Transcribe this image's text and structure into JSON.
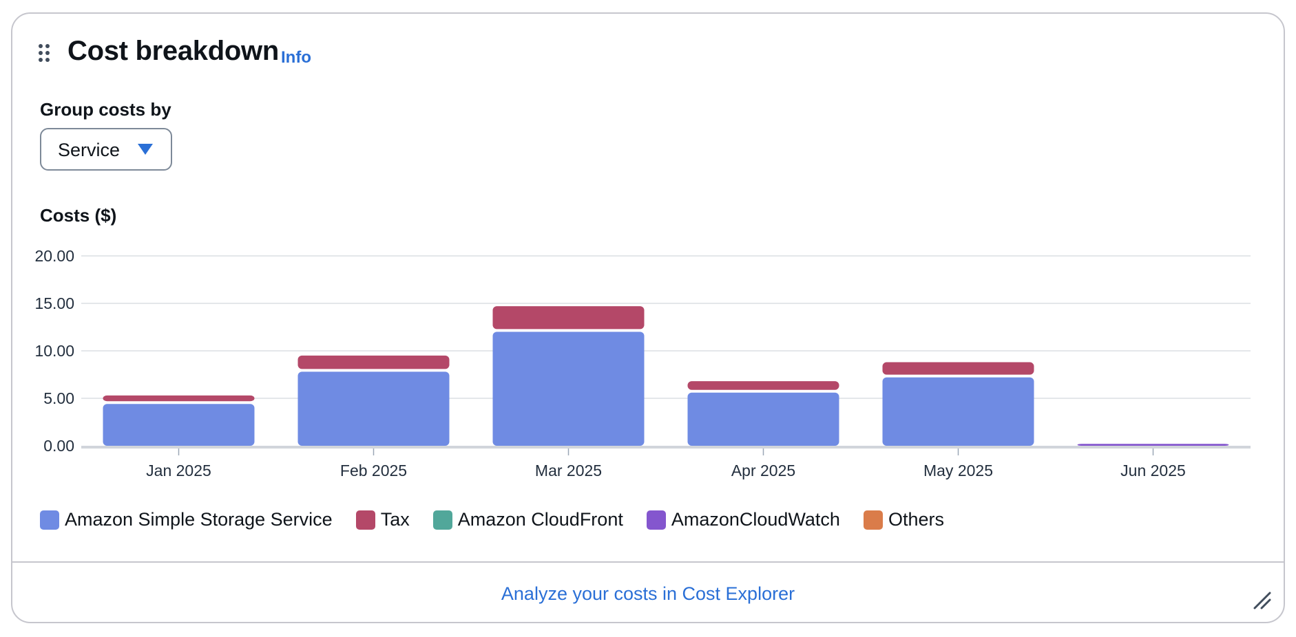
{
  "header": {
    "title": "Cost breakdown",
    "info_label": "Info"
  },
  "group_by": {
    "label": "Group costs by",
    "selected": "Service"
  },
  "chart_data": {
    "type": "bar",
    "stacked": true,
    "ylabel": "Costs ($)",
    "ylim": [
      0,
      20
    ],
    "yticks": [
      "0.00",
      "5.00",
      "10.00",
      "15.00",
      "20.00"
    ],
    "categories": [
      "Jan 2025",
      "Feb 2025",
      "Mar 2025",
      "Apr 2025",
      "May 2025",
      "Jun 2025"
    ],
    "series": [
      {
        "name": "Amazon Simple Storage Service",
        "color": "#6f8be3",
        "values": [
          4.4,
          7.8,
          12.0,
          5.6,
          7.2,
          0
        ]
      },
      {
        "name": "Tax",
        "color": "#b44868",
        "values": [
          0.9,
          1.7,
          2.7,
          1.2,
          1.6,
          0
        ]
      },
      {
        "name": "Amazon CloudFront",
        "color": "#51a79a",
        "values": [
          0,
          0,
          0,
          0,
          0,
          0
        ]
      },
      {
        "name": "AmazonCloudWatch",
        "color": "#8456ce",
        "values": [
          0,
          0,
          0,
          0,
          0,
          0.2
        ]
      },
      {
        "name": "Others",
        "color": "#da7c4a",
        "values": [
          0,
          0,
          0,
          0,
          0,
          0
        ]
      }
    ],
    "grid": true,
    "legend_position": "bottom-left"
  },
  "footer": {
    "link_label": "Analyze your costs in Cost Explorer"
  }
}
